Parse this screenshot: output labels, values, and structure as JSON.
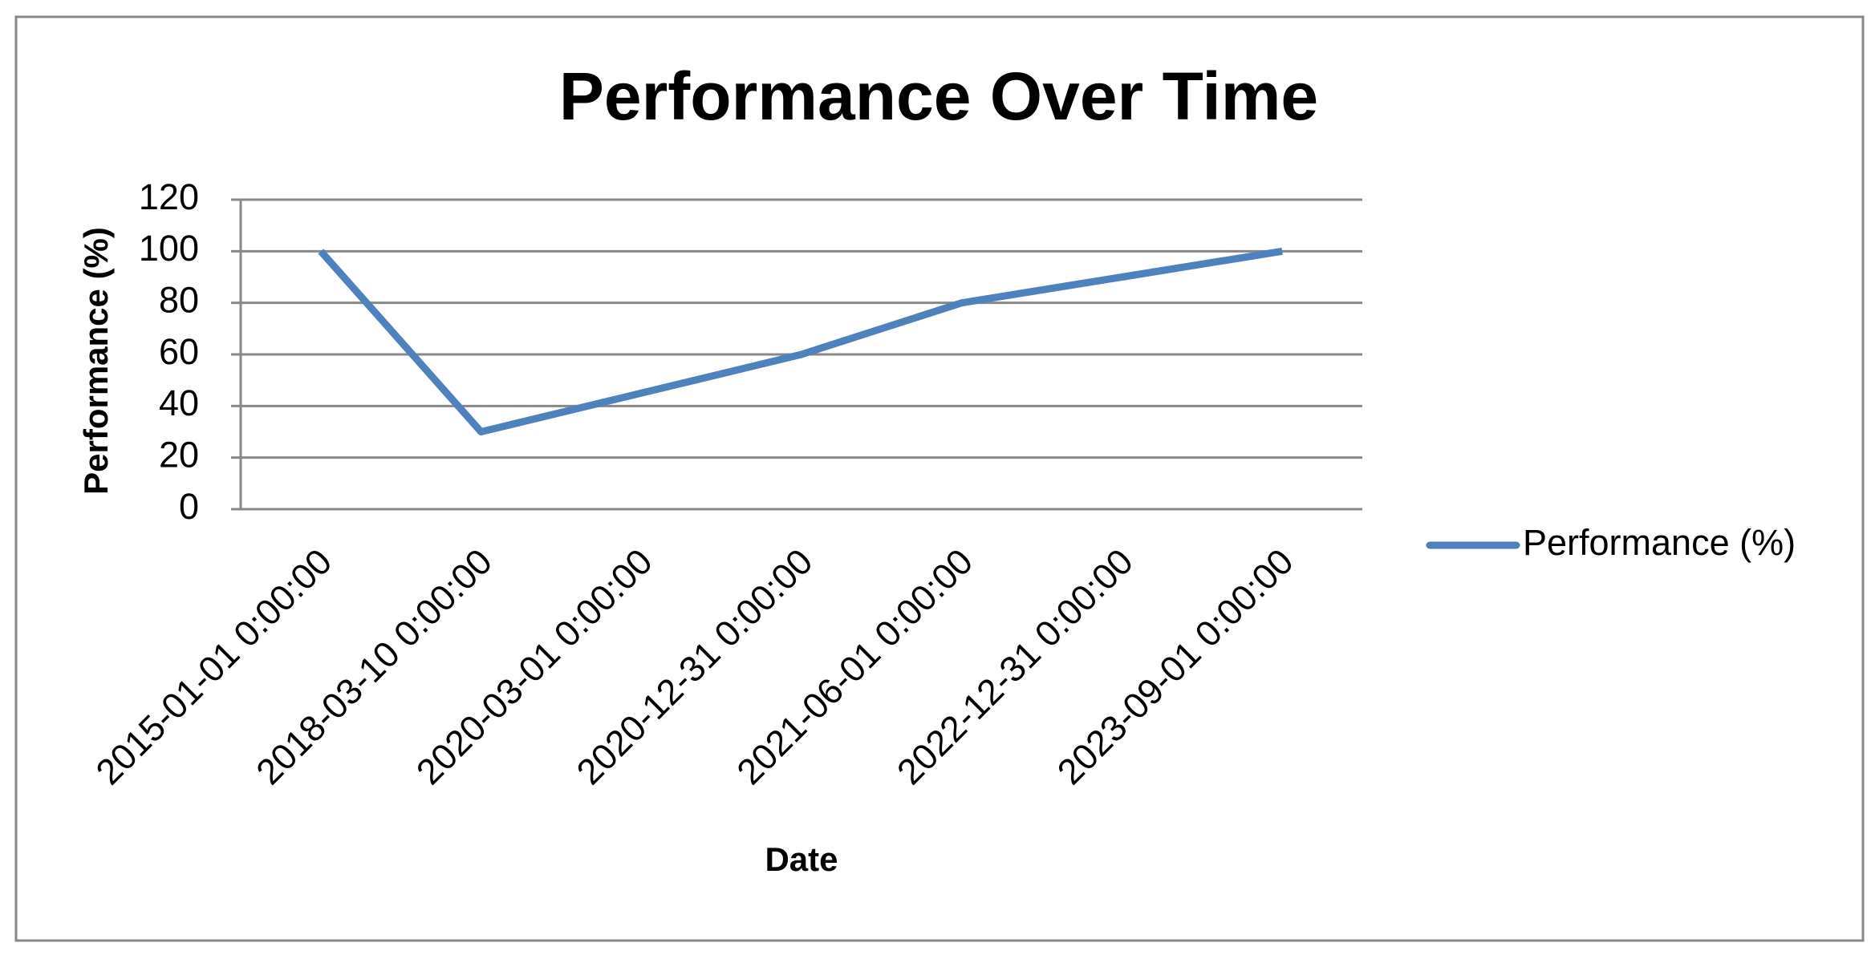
{
  "chart_data": {
    "type": "line",
    "title": "Performance Over Time",
    "x_label": "Date",
    "y_label": "Performance (%)",
    "categories": [
      "2015-01-01 0:00:00",
      "2018-03-10 0:00:00",
      "2020-03-01 0:00:00",
      "2020-12-31 0:00:00",
      "2021-06-01 0:00:00",
      "2022-12-31 0:00:00",
      "2023-09-01 0:00:00"
    ],
    "series": [
      {
        "name": "Performance (%)",
        "color": "#4f81bd",
        "values": [
          100,
          30,
          45,
          60,
          80,
          90,
          100
        ]
      }
    ],
    "ylim": [
      0,
      120
    ],
    "yticks": [
      0,
      20,
      40,
      60,
      80,
      100,
      120
    ],
    "grid": true,
    "legend": "right"
  }
}
